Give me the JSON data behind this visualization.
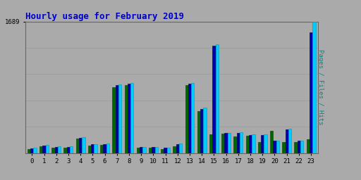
{
  "title": "Hourly usage for February 2019",
  "title_color": "#0000cc",
  "title_fontsize": 9,
  "background_color": "#aaaaaa",
  "plot_bg_color": "#aaaaaa",
  "ymax": 1689,
  "ytick_label": "1689",
  "hours": [
    0,
    1,
    2,
    3,
    4,
    5,
    6,
    7,
    8,
    9,
    10,
    11,
    12,
    13,
    14,
    15,
    16,
    17,
    18,
    19,
    20,
    21,
    22,
    23
  ],
  "pages": [
    50,
    90,
    70,
    70,
    185,
    100,
    105,
    850,
    870,
    65,
    65,
    55,
    90,
    870,
    540,
    240,
    245,
    210,
    220,
    145,
    290,
    145,
    145,
    180
  ],
  "files": [
    60,
    100,
    80,
    80,
    195,
    110,
    115,
    870,
    890,
    75,
    75,
    65,
    110,
    890,
    570,
    1380,
    255,
    260,
    235,
    235,
    155,
    305,
    155,
    1550
  ],
  "hits": [
    65,
    105,
    85,
    85,
    200,
    115,
    120,
    880,
    900,
    80,
    80,
    68,
    120,
    900,
    580,
    1400,
    260,
    265,
    240,
    240,
    160,
    310,
    160,
    1689
  ],
  "color_pages": "#006600",
  "color_files": "#0000aa",
  "color_hits": "#00ccff",
  "bar_edge_pages": "#004400",
  "bar_edge_files": "#000066",
  "bar_edge_hits": "#0099bb",
  "bar_width": 0.25,
  "grid_color": "#999999",
  "font_family": "monospace",
  "ylabel_text": "Pages / Files / Hits",
  "ylabel_color": "#008888"
}
